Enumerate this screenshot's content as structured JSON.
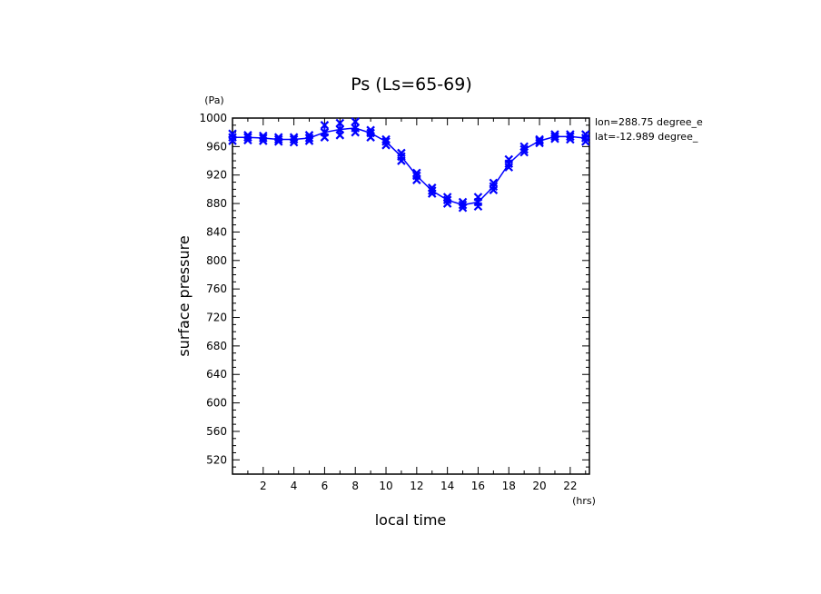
{
  "chart_data": {
    "type": "line",
    "title": "Ps (Ls=65-69)",
    "xlabel": "local time",
    "ylabel": "surface pressure",
    "x_unit": "(hrs)",
    "y_unit": "(Pa)",
    "xlim": [
      0,
      23.25
    ],
    "ylim": [
      500,
      1000
    ],
    "x_ticks": [
      2,
      4,
      6,
      8,
      10,
      12,
      14,
      16,
      18,
      20,
      22
    ],
    "y_ticks": [
      520,
      560,
      600,
      640,
      680,
      720,
      760,
      800,
      840,
      880,
      920,
      960,
      1000
    ],
    "annotations": [
      "lon=288.75 degree_e",
      "lat=-12.989 degree_"
    ],
    "grid": false,
    "color": "#0000ff",
    "x": [
      0,
      1,
      2,
      3,
      4,
      5,
      6,
      7,
      8,
      9,
      10,
      11,
      12,
      13,
      14,
      15,
      16,
      17,
      18,
      19,
      20,
      21,
      22,
      23
    ],
    "series": [
      {
        "values": [
          973,
          973,
          972,
          970,
          970,
          972,
          980,
          984,
          986,
          979,
          967,
          946,
          919,
          898,
          885,
          878,
          882,
          904,
          936,
          956,
          968,
          974,
          974,
          972
        ],
        "markers_min": [
          968,
          969,
          968,
          967,
          966,
          968,
          973,
          976,
          980,
          973,
          962,
          940,
          913,
          894,
          880,
          874,
          876,
          899,
          931,
          952,
          965,
          971,
          970,
          967
        ],
        "markers_max": [
          978,
          976,
          975,
          973,
          973,
          976,
          990,
          993,
          995,
          983,
          970,
          951,
          923,
          902,
          889,
          882,
          889,
          909,
          942,
          960,
          970,
          977,
          977,
          977
        ]
      }
    ]
  }
}
